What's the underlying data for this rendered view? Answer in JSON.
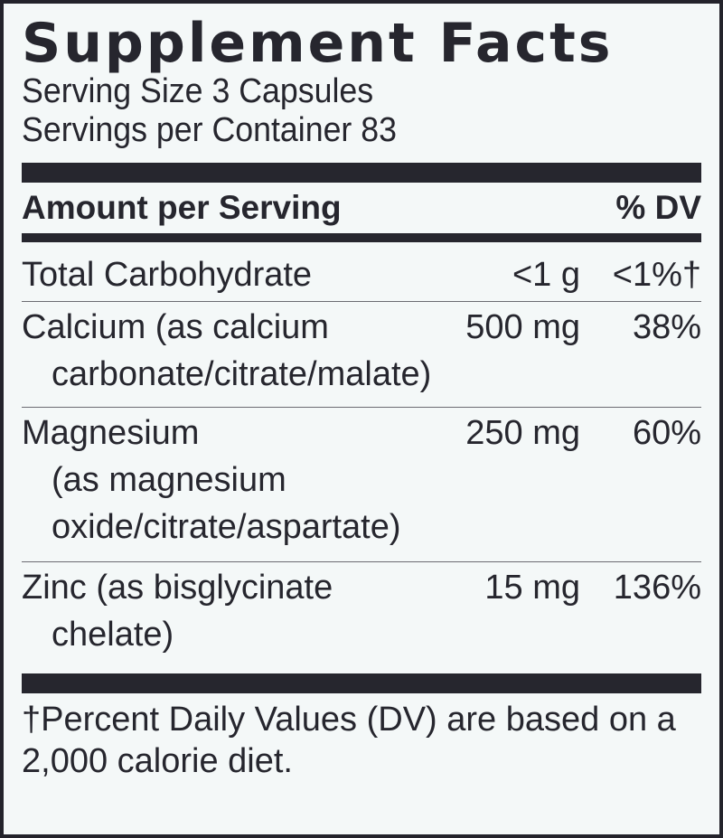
{
  "title": "Supplement Facts",
  "serving_size": "Serving Size 3 Capsules",
  "servings_per_container": "Servings per Container 83",
  "header": {
    "amount_label": "Amount per Serving",
    "dv_label": "% DV"
  },
  "nutrients": [
    {
      "line1": "Total Carbohydrate",
      "amount": "<1 g",
      "dv": "<1%†"
    },
    {
      "line1": "Calcium (as calcium",
      "line2": "carbonate/citrate/malate)",
      "amount": "500 mg",
      "dv": "38%"
    },
    {
      "line1": "Magnesium",
      "line2": "(as magnesium",
      "line3": "oxide/citrate/aspartate)",
      "amount": "250 mg",
      "dv": "60%"
    },
    {
      "line1": "Zinc (as bisglycinate",
      "line2": "chelate)",
      "amount": "15 mg",
      "dv": "136%"
    }
  ],
  "footnote_line1": "†Percent Daily Values (DV) are based on a",
  "footnote_line2": "2,000 calorie diet.",
  "colors": {
    "text": "#26262e",
    "background": "#f4f8f8",
    "border": "#23232b"
  }
}
